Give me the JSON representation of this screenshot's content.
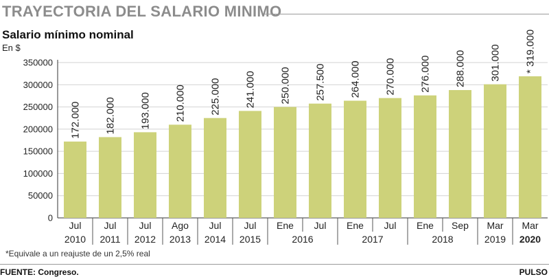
{
  "header": {
    "headline": "TRAYECTORIA DEL SALARIO MINIMO"
  },
  "footer": {
    "footnote": "*Equivale a un reajuste de un 2,5% real",
    "source": "FUENTE: Congreso.",
    "brand": "PULSO"
  },
  "chart_data": {
    "type": "bar",
    "title": "Salario mínimo nominal",
    "ylabel": "En $",
    "ylim": [
      0,
      350000
    ],
    "yticks": [
      0,
      50000,
      100000,
      150000,
      200000,
      250000,
      300000,
      350000
    ],
    "ytick_labels": [
      "0",
      "50000",
      "100000",
      "150000",
      "200000",
      "250000",
      "300000",
      "350000"
    ],
    "grid": true,
    "bar_color": "#cdd27a",
    "months": [
      "Jul",
      "Jul",
      "Jul",
      "Ago",
      "Jul",
      "Jul",
      "Ene",
      "Jul",
      "Ene",
      "Jul",
      "Ene",
      "Sep",
      "Mar",
      "Mar"
    ],
    "values": [
      172000,
      182000,
      193000,
      210000,
      225000,
      241000,
      250000,
      257500,
      264000,
      270000,
      276000,
      288000,
      301000,
      319000
    ],
    "value_labels": [
      "172.000",
      "182.000",
      "193.000",
      "210.000",
      "225.000",
      "241.000",
      "250.000",
      "257.500",
      "264.000",
      "270.000",
      "276.000",
      "288.000",
      "301.000",
      "* 319.000"
    ],
    "years": [
      {
        "label": "2010",
        "start": 0,
        "end": 0
      },
      {
        "label": "2011",
        "start": 1,
        "end": 1
      },
      {
        "label": "2012",
        "start": 2,
        "end": 2
      },
      {
        "label": "2013",
        "start": 3,
        "end": 3
      },
      {
        "label": "2014",
        "start": 4,
        "end": 4
      },
      {
        "label": "2015",
        "start": 5,
        "end": 5
      },
      {
        "label": "2016",
        "start": 6,
        "end": 7
      },
      {
        "label": "2017",
        "start": 8,
        "end": 9
      },
      {
        "label": "2018",
        "start": 10,
        "end": 11
      },
      {
        "label": "2019",
        "start": 12,
        "end": 12
      },
      {
        "label": "2020",
        "start": 13,
        "end": 13
      }
    ]
  }
}
